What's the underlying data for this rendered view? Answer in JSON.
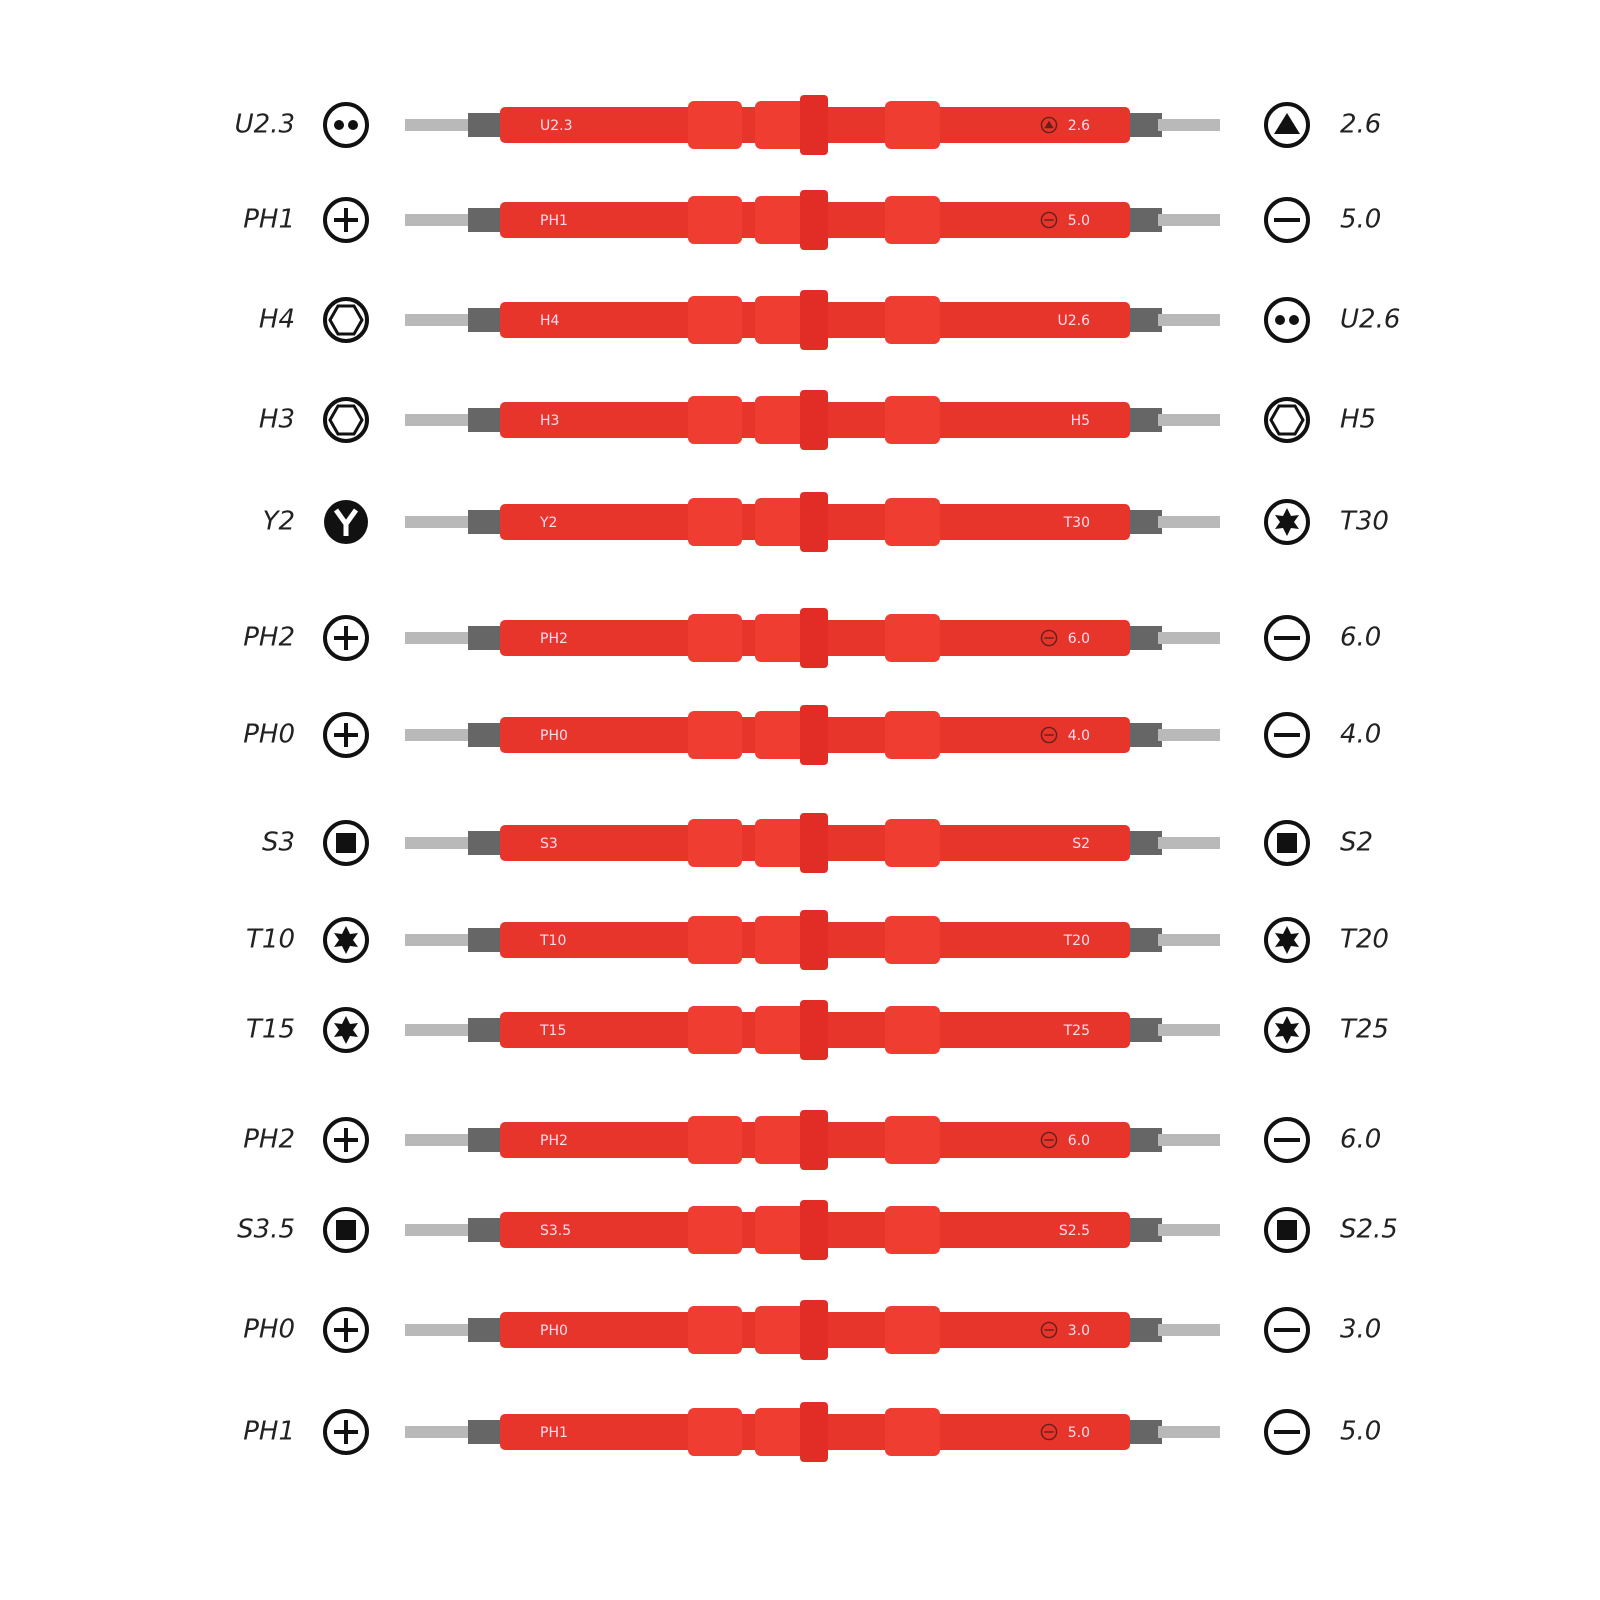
{
  "rows": [
    {
      "left": "U2.3",
      "right": "2.6"
    },
    {
      "left": "PH1",
      "right": "5.0"
    },
    {
      "left": "H4",
      "right": "U2.6"
    },
    {
      "left": "H3",
      "right": "H5"
    },
    {
      "left": "Y2",
      "right": "T30"
    },
    {
      "left": "PH2",
      "right": "6.0"
    },
    {
      "left": "PH0",
      "right": "4.0"
    },
    {
      "left": "S3",
      "right": "S2"
    },
    {
      "left": "T10",
      "right": "T20"
    },
    {
      "left": "T15",
      "right": "T25"
    },
    {
      "left": "PH2",
      "right": "6.0"
    },
    {
      "left": "S3.5",
      "right": "S2.5"
    },
    {
      "left": "PH0",
      "right": "3.0"
    },
    {
      "left": "PH1",
      "right": "5.0"
    }
  ]
}
